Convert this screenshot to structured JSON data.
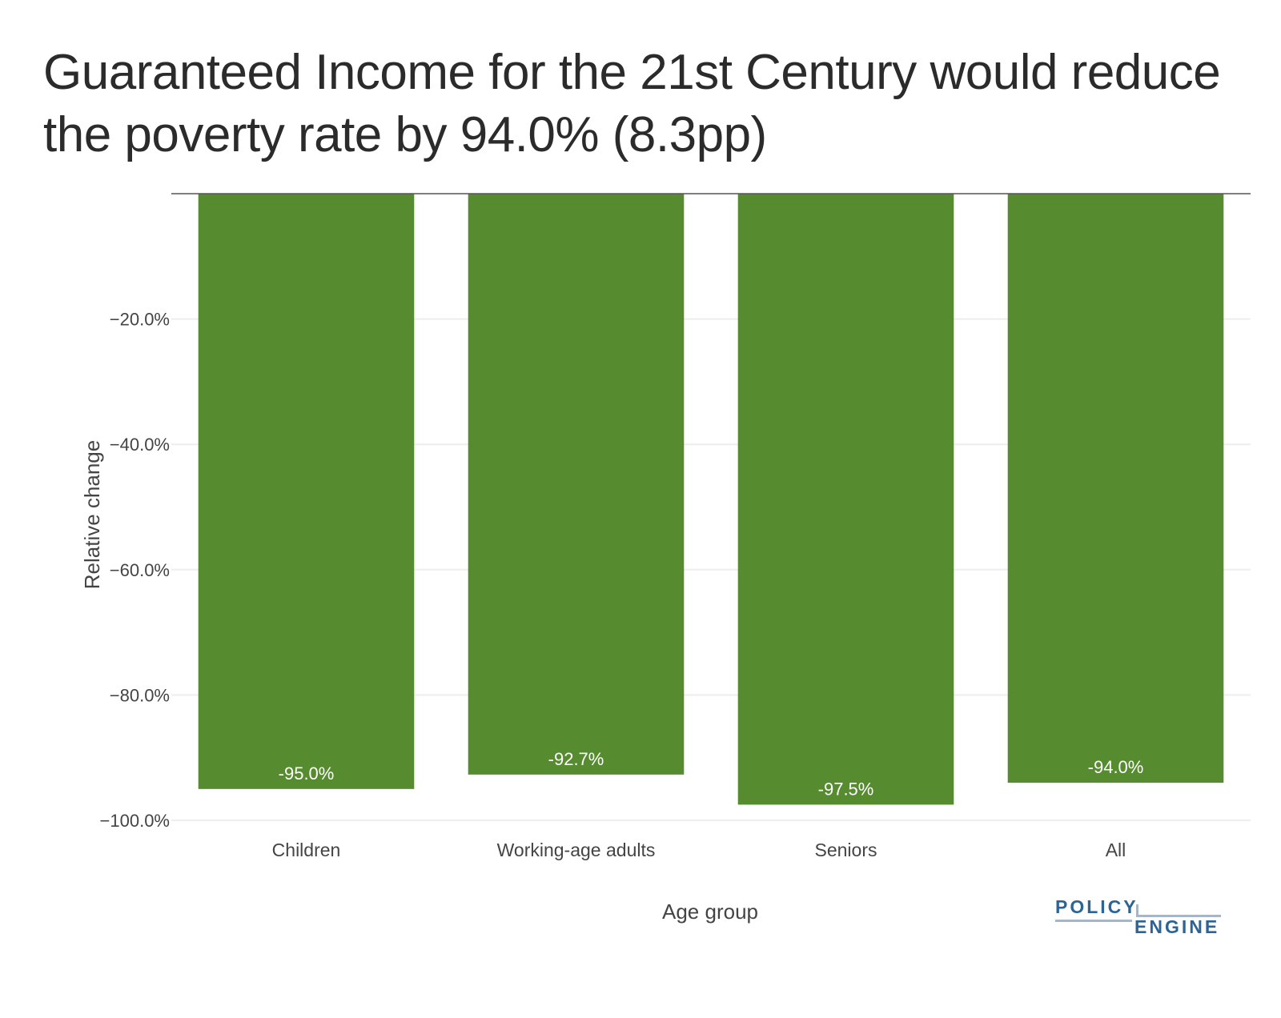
{
  "title": "Guaranteed Income for the 21st Century would reduce the poverty rate by 94.0% (8.3pp)",
  "logo": {
    "line1": "POLICY",
    "line2": "ENGINE"
  },
  "colors": {
    "bar": "#568b30",
    "grid": "#eeeeee",
    "zero_line": "#555555",
    "logo": "#2c6496"
  },
  "chart_data": {
    "type": "bar",
    "categories": [
      "Children",
      "Working-age adults",
      "Seniors",
      "All"
    ],
    "values": [
      -95.0,
      -92.7,
      -97.5,
      -94.0
    ],
    "data_labels": [
      "-95.0%",
      "-92.7%",
      "-97.5%",
      "-94.0%"
    ],
    "xlabel": "Age group",
    "ylabel": "Relative change",
    "ylim": [
      -100,
      0
    ],
    "yticks": [
      -20,
      -40,
      -60,
      -80,
      -100
    ],
    "ytick_labels": [
      "−20.0%",
      "−40.0%",
      "−60.0%",
      "−80.0%",
      "−100.0%"
    ],
    "grid": true,
    "legend": false
  }
}
